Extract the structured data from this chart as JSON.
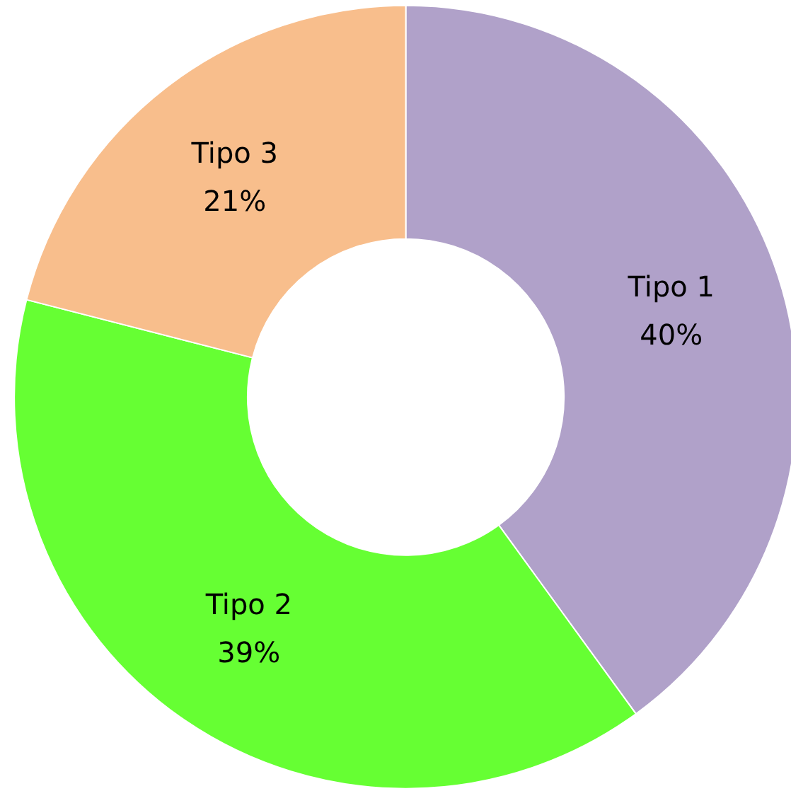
{
  "chart_data": {
    "type": "donut",
    "categories": [
      "Tipo 1",
      "Tipo 2",
      "Tipo 3"
    ],
    "values": [
      40,
      39,
      21
    ],
    "colors": [
      "#b0a1c9",
      "#66ff33",
      "#f8be8c"
    ],
    "value_labels": [
      "40%",
      "39%",
      "21%"
    ],
    "legend": false
  }
}
